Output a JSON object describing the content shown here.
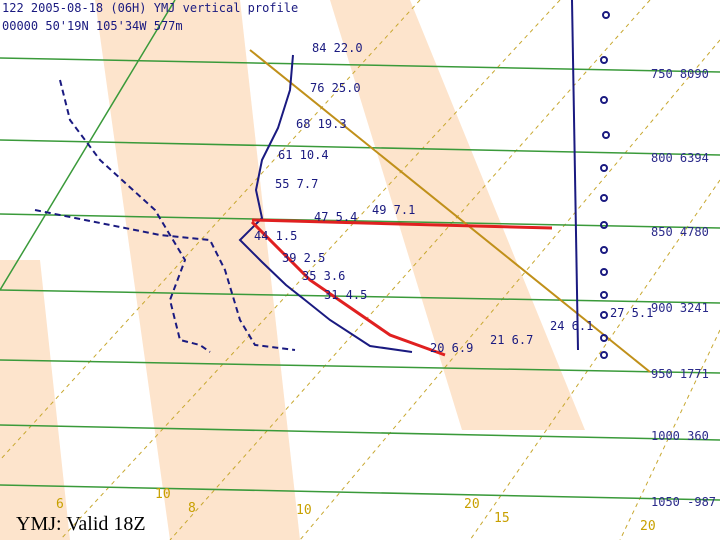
{
  "header": {
    "line1": "122 2005-08-18 (06H) YMJ vertical profile",
    "line2": "00000 50'19N 105'34W 577m"
  },
  "pressure_levels": [
    "750 8090",
    "800 6394",
    "850 4780",
    "900 3241",
    "950 1771",
    "1000 360",
    "1050 -987"
  ],
  "point_labels": [
    "84 22.0",
    "76 25.0",
    "68 19.3",
    "61 10.4",
    "55 7.7",
    "47 5.4",
    "49 7.1",
    "44 1.5",
    "39 2.5",
    "35 3.6",
    "31 4.5",
    "20 6.9",
    "21 6.7",
    "24 6.1",
    "27 5.1"
  ],
  "axis_labels": [
    "6",
    "10",
    "8",
    "10",
    "20",
    "15",
    "20"
  ],
  "caption": "YMJ: Valid 18Z"
}
